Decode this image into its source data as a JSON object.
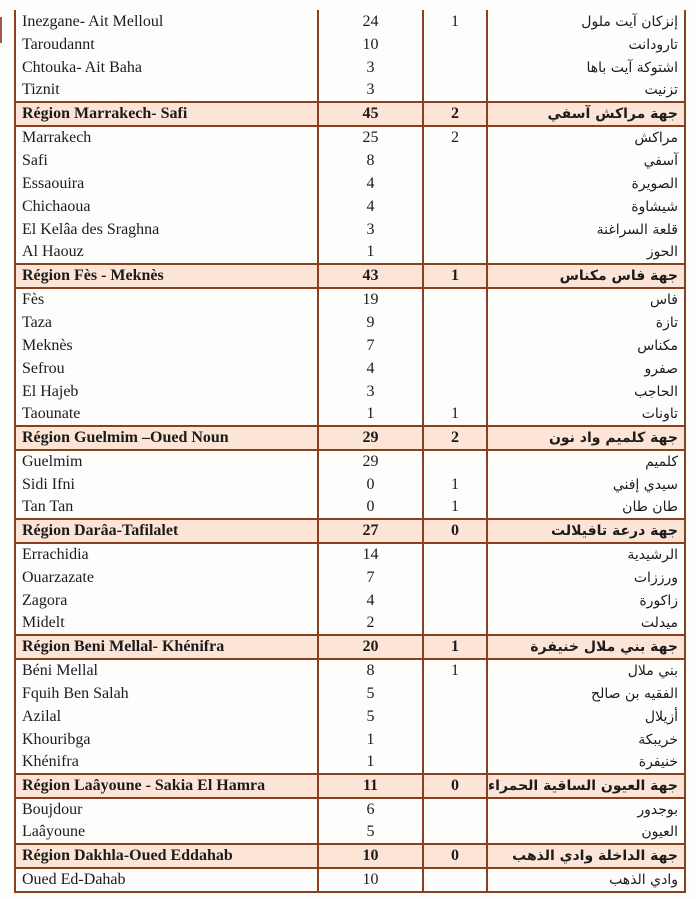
{
  "colors": {
    "border": "#8a3f1e",
    "region_row_bg": "#fce4d6",
    "text": "#1c1c1c"
  },
  "table": {
    "columns": [
      "name_fr",
      "cases",
      "deaths",
      "name_ar"
    ],
    "rows": [
      {
        "type": "city",
        "fr": "Inezgane- Ait Melloul",
        "cases": "24",
        "deaths": "1",
        "ar": "إنزكان آيت ملول"
      },
      {
        "type": "city",
        "fr": "Taroudannt",
        "cases": "10",
        "deaths": "",
        "ar": "تارودانت"
      },
      {
        "type": "city",
        "fr": "Chtouka- Ait Baha",
        "cases": "3",
        "deaths": "",
        "ar": "اشتوكة آيت باها"
      },
      {
        "type": "city",
        "fr": "Tiznit",
        "cases": "3",
        "deaths": "",
        "ar": "تزنيت"
      },
      {
        "type": "region",
        "fr": "Région Marrakech- Safi",
        "cases": "45",
        "deaths": "2",
        "ar": "جهة مراكش آسفي"
      },
      {
        "type": "city",
        "fr": "Marrakech",
        "cases": "25",
        "deaths": "2",
        "ar": "مراكش"
      },
      {
        "type": "city",
        "fr": "Safi",
        "cases": "8",
        "deaths": "",
        "ar": "آسفي"
      },
      {
        "type": "city",
        "fr": "Essaouira",
        "cases": "4",
        "deaths": "",
        "ar": "الصويرة"
      },
      {
        "type": "city",
        "fr": "Chichaoua",
        "cases": "4",
        "deaths": "",
        "ar": "شيشاوة"
      },
      {
        "type": "city",
        "fr": "El Kelâa des  Sraghna",
        "cases": "3",
        "deaths": "",
        "ar": "قلعة السراغنة"
      },
      {
        "type": "city",
        "fr": "Al  Haouz",
        "cases": "1",
        "deaths": "",
        "ar": "الحوز"
      },
      {
        "type": "region",
        "fr": "Région Fès - Meknès",
        "cases": "43",
        "deaths": "1",
        "ar": "جهة فاس مكناس"
      },
      {
        "type": "city",
        "fr": "Fès",
        "cases": "19",
        "deaths": "",
        "ar": "فاس"
      },
      {
        "type": "city",
        "fr": "Taza",
        "cases": "9",
        "deaths": "",
        "ar": "تازة"
      },
      {
        "type": "city",
        "fr": "Meknès",
        "cases": "7",
        "deaths": "",
        "ar": "مكناس"
      },
      {
        "type": "city",
        "fr": "Sefrou",
        "cases": "4",
        "deaths": "",
        "ar": "صفرو"
      },
      {
        "type": "city",
        "fr": "El  Hajeb",
        "cases": "3",
        "deaths": "",
        "ar": "الحاجب"
      },
      {
        "type": "city",
        "fr": "Taounate",
        "cases": "1",
        "deaths": "1",
        "ar": "تاونات"
      },
      {
        "type": "region",
        "fr": "Région Guelmim –Oued Noun",
        "cases": "29",
        "deaths": "2",
        "ar": "جهة كلميم واد نون"
      },
      {
        "type": "city",
        "fr": "Guelmim",
        "cases": "29",
        "deaths": "",
        "ar": "كلميم"
      },
      {
        "type": "city",
        "fr": "Sidi Ifni",
        "cases": "0",
        "deaths": "1",
        "ar": "سيدي إفني"
      },
      {
        "type": "city",
        "fr": "Tan Tan",
        "cases": "0",
        "deaths": "1",
        "ar": "طان طان"
      },
      {
        "type": "region",
        "fr": "Région Darâa-Tafilalet",
        "cases": "27",
        "deaths": "0",
        "ar": "جهة درعة تافيلالت"
      },
      {
        "type": "city",
        "fr": "Errachidia",
        "cases": "14",
        "deaths": "",
        "ar": "الرشيدية"
      },
      {
        "type": "city",
        "fr": "Ouarzazate",
        "cases": "7",
        "deaths": "",
        "ar": "ورززات"
      },
      {
        "type": "city",
        "fr": "Zagora",
        "cases": "4",
        "deaths": "",
        "ar": "زاكورة"
      },
      {
        "type": "city",
        "fr": "Midelt",
        "cases": "2",
        "deaths": "",
        "ar": "ميدلت"
      },
      {
        "type": "region",
        "fr": "Région Beni Mellal- Khénifra",
        "cases": "20",
        "deaths": "1",
        "ar": "جهة بني ملال خنيفرة"
      },
      {
        "type": "city",
        "fr": "Béni Mellal",
        "cases": "8",
        "deaths": "1",
        "ar": "بني ملال"
      },
      {
        "type": "city",
        "fr": "Fquih Ben Salah",
        "cases": "5",
        "deaths": "",
        "ar": "الفقيه بن صالح"
      },
      {
        "type": "city",
        "fr": "Azilal",
        "cases": "5",
        "deaths": "",
        "ar": "أزيلال"
      },
      {
        "type": "city",
        "fr": "Khouribga",
        "cases": "1",
        "deaths": "",
        "ar": "خريبكة"
      },
      {
        "type": "city",
        "fr": "Khénifra",
        "cases": "1",
        "deaths": "",
        "ar": "خنيفرة"
      },
      {
        "type": "region",
        "fr": "Région Laâyoune - Sakia El Hamra",
        "cases": "11",
        "deaths": "0",
        "ar": "جهة العيون الساقية الحمراء"
      },
      {
        "type": "city",
        "fr": "Boujdour",
        "cases": "6",
        "deaths": "",
        "ar": "بوجدور"
      },
      {
        "type": "city",
        "fr": "Laâyoune",
        "cases": "5",
        "deaths": "",
        "ar": "العيون"
      },
      {
        "type": "region",
        "fr": "Région Dakhla-Oued Eddahab",
        "cases": "10",
        "deaths": "0",
        "ar": "جهة الداخلة وادي الذهب"
      },
      {
        "type": "city",
        "fr": "Oued Ed-Dahab",
        "cases": "10",
        "deaths": "",
        "ar": "وادي الذهب"
      }
    ]
  }
}
